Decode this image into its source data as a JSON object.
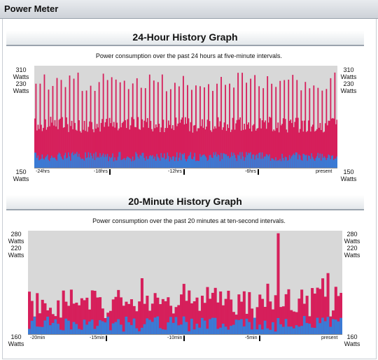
{
  "window": {
    "title": "Power Meter"
  },
  "colors": {
    "consumption": "#d61f5b",
    "baseline": "#3a7bd5",
    "plot_bg": "#d8d8d8"
  },
  "graphs": {
    "hist24": {
      "title": "24-Hour History Graph",
      "caption": "Power consumption over the past 24 hours at five-minute intervals.",
      "y_top_left": "310\nWatts\n230\nWatts",
      "y_top_right": "310\nWatts\n230\nWatts",
      "y_bottom_left": "150\nWatts",
      "y_bottom_right": "150\nWatts",
      "ticks": [
        "-24hrs",
        "-18hrs",
        "-12hrs",
        "-6hrs",
        "present"
      ]
    },
    "hist20": {
      "title": "20-Minute History Graph",
      "caption": "Power consumption over the past 20 minutes at ten-second intervals.",
      "y_top_left": "280\nWatts\n220\nWatts",
      "y_top_right": "280\nWatts\n220\nWatts",
      "y_bottom_left": "160\nWatts",
      "y_bottom_right": "160\nWatts",
      "ticks": [
        "-20min",
        "-15min",
        "-10min",
        "-5min",
        "present"
      ]
    }
  },
  "chart_data": [
    {
      "type": "area",
      "title": "24-Hour History Graph",
      "x_range": [
        "-24hrs",
        "present"
      ],
      "ylim": [
        150,
        310
      ],
      "samples": 288,
      "series": [
        {
          "name": "",
          "description": "total",
          "typical_range": [
            205,
            230
          ],
          "spikes_to": 300
        },
        {
          "name": "",
          "description": "base",
          "typical_range": [
            160,
            175
          ]
        }
      ]
    },
    {
      "type": "bar",
      "title": "20-Minute History Graph",
      "x_range": [
        "-20min",
        "present"
      ],
      "ylim": [
        160,
        280
      ],
      "samples": 120,
      "series": [
        {
          "name": "",
          "values_pattern": "total",
          "typical_range": [
            178,
            215
          ],
          "max": 277
        },
        {
          "name": "",
          "values_pattern": "base",
          "typical_range": [
            163,
            182
          ]
        }
      ]
    }
  ]
}
